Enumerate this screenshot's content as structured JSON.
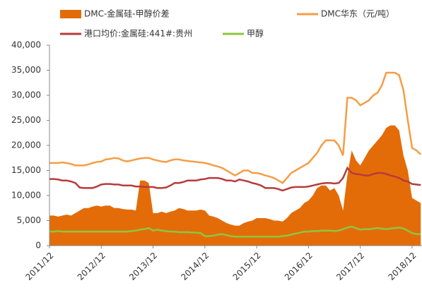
{
  "chart_data": {
    "type": "line",
    "categories": [
      "2011/12",
      null,
      null,
      null,
      null,
      null,
      null,
      null,
      null,
      null,
      null,
      null,
      "2012/12",
      null,
      null,
      null,
      null,
      null,
      null,
      null,
      null,
      null,
      null,
      null,
      "2013/12",
      null,
      null,
      null,
      null,
      null,
      null,
      null,
      null,
      null,
      null,
      null,
      "2014/12",
      null,
      null,
      null,
      null,
      null,
      null,
      null,
      null,
      null,
      null,
      null,
      "2015/12",
      null,
      null,
      null,
      null,
      null,
      null,
      null,
      null,
      null,
      null,
      null,
      "2016/12",
      null,
      null,
      null,
      null,
      null,
      null,
      null,
      null,
      null,
      null,
      null,
      "2017/12",
      null,
      null,
      null,
      null,
      null,
      null,
      null,
      null,
      null,
      null,
      null,
      "2018/12",
      null,
      null
    ],
    "series": [
      {
        "name": "DMC-金属硅-甲醇价差",
        "type": "area",
        "color": "#e36c09",
        "values": [
          6000,
          6000,
          5800,
          6000,
          6200,
          6000,
          6500,
          7000,
          7500,
          7500,
          7800,
          8000,
          7800,
          8000,
          8000,
          7500,
          7500,
          7300,
          7200,
          7200,
          7000,
          13000,
          13000,
          12500,
          6500,
          6500,
          6800,
          6500,
          6800,
          7000,
          7500,
          7300,
          7000,
          7000,
          7000,
          7200,
          7000,
          6000,
          5800,
          5500,
          5000,
          4500,
          4200,
          4000,
          4000,
          4500,
          4800,
          5000,
          5500,
          5500,
          5500,
          5300,
          5000,
          5000,
          4800,
          5500,
          6500,
          7000,
          7500,
          8500,
          9000,
          10000,
          11500,
          12000,
          12000,
          11000,
          11500,
          10000,
          7000,
          14000,
          19000,
          17000,
          16000,
          17500,
          19000,
          20000,
          21000,
          22000,
          23500,
          24000,
          24000,
          23000,
          18000,
          15000,
          9500,
          9000,
          8500
        ]
      },
      {
        "name": "DMC华东（元/吨）",
        "type": "line",
        "color": "#f59d45",
        "values": [
          16500,
          16500,
          16500,
          16600,
          16500,
          16300,
          16000,
          16000,
          16000,
          16200,
          16500,
          16700,
          16800,
          17200,
          17300,
          17500,
          17400,
          17000,
          16800,
          17000,
          17200,
          17400,
          17500,
          17500,
          17200,
          17000,
          16800,
          16700,
          17000,
          17200,
          17200,
          17000,
          16900,
          16800,
          16700,
          16600,
          16500,
          16300,
          16000,
          15800,
          15500,
          15000,
          14500,
          14000,
          14500,
          15000,
          15000,
          14500,
          14500,
          14300,
          14000,
          13800,
          13500,
          13000,
          12500,
          13500,
          14500,
          15000,
          15500,
          16000,
          16500,
          17500,
          18500,
          20000,
          21000,
          21000,
          21000,
          20000,
          18000,
          29500,
          29500,
          29000,
          28000,
          28500,
          29000,
          30000,
          30500,
          32000,
          34500,
          34500,
          34500,
          34000,
          31000,
          25000,
          19500,
          19000,
          18200
        ]
      },
      {
        "name": "港口均价:金属硅:441#:贵州",
        "type": "line",
        "color": "#b83b3b",
        "values": [
          13300,
          13300,
          13200,
          13000,
          13000,
          12800,
          12500,
          11600,
          11500,
          11500,
          11500,
          11800,
          12200,
          12300,
          12300,
          12200,
          12200,
          12000,
          12000,
          12000,
          11800,
          11800,
          11700,
          11700,
          11700,
          11500,
          11500,
          11600,
          12000,
          12500,
          12500,
          12700,
          13000,
          13000,
          13000,
          13200,
          13300,
          13500,
          13500,
          13500,
          13300,
          13000,
          13000,
          12800,
          13200,
          13000,
          12800,
          12500,
          12300,
          12000,
          11500,
          11500,
          11500,
          11300,
          11000,
          11300,
          11600,
          11700,
          11700,
          11700,
          11800,
          12000,
          12200,
          12400,
          12500,
          12500,
          12400,
          12500,
          13500,
          15500,
          14500,
          14300,
          14200,
          14000,
          14000,
          14300,
          14500,
          14500,
          14300,
          14000,
          13800,
          13500,
          13000,
          12800,
          12300,
          12200,
          12100
        ]
      },
      {
        "name": "甲醇",
        "type": "line",
        "color": "#8dc63f",
        "values": [
          2800,
          2800,
          2900,
          2800,
          2800,
          2800,
          2800,
          2800,
          2800,
          2800,
          2800,
          2800,
          2800,
          2800,
          2800,
          2800,
          2800,
          2800,
          2800,
          2900,
          3000,
          3200,
          3300,
          3500,
          3000,
          3200,
          3000,
          2900,
          2800,
          2800,
          2700,
          2700,
          2700,
          2600,
          2600,
          2500,
          1900,
          1900,
          2000,
          2200,
          2300,
          2100,
          1900,
          1800,
          1800,
          1800,
          1800,
          1800,
          1800,
          1800,
          1800,
          1800,
          1800,
          1800,
          1900,
          2000,
          2200,
          2400,
          2600,
          2800,
          2800,
          2900,
          2900,
          3000,
          3000,
          3000,
          2900,
          3000,
          3300,
          3600,
          3800,
          3500,
          3200,
          3300,
          3300,
          3400,
          3500,
          3400,
          3300,
          3400,
          3500,
          3600,
          3400,
          3000,
          2500,
          2300,
          2300
        ]
      }
    ],
    "ylim": [
      0,
      40000
    ],
    "yticks": [
      0,
      {
        "value": 5000,
        "label": "5,000"
      },
      {
        "value": 10000,
        "label": "10,000"
      },
      {
        "value": 15000,
        "label": "15,000"
      },
      {
        "value": 20000,
        "label": "20,000"
      },
      {
        "value": 25000,
        "label": "25,000"
      },
      {
        "value": 30000,
        "label": "30,000"
      },
      {
        "value": 35000,
        "label": "35,000"
      },
      {
        "value": 40000,
        "label": "40,000"
      }
    ],
    "grid": false
  }
}
